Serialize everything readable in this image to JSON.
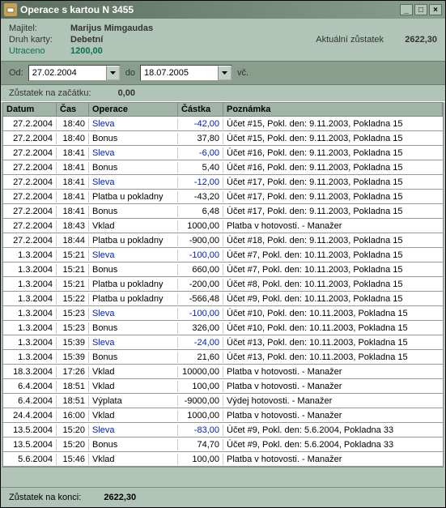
{
  "title": "Operace s kartou N 3455",
  "header": {
    "owner_label": "Majitel:",
    "owner": "Marijus Mimgaudas",
    "cardtype_label": "Druh karty:",
    "cardtype": "Debetní",
    "spent_label": "Utraceno",
    "spent": "1200,00",
    "balance_label": "Aktuální zůstatek",
    "balance": "2622,30"
  },
  "filters": {
    "from_label": "Od:",
    "from": "27.02.2004",
    "to_label": "do",
    "to": "18.07.2005",
    "incl": "vč."
  },
  "start_balance_label": "Zůstatek na začátku:",
  "start_balance": "0,00",
  "columns": {
    "datum": "Datum",
    "cas": "Čas",
    "operace": "Operace",
    "castka": "Částka",
    "pozn": "Poznámka"
  },
  "rows": [
    {
      "d": "27.2.2004",
      "t": "18:40",
      "op": "Sleva",
      "amt": "-42,00",
      "note": "Účet #15, Pokl. den: 9.11.2003, Pokladna 15",
      "link": true
    },
    {
      "d": "27.2.2004",
      "t": "18:40",
      "op": "Bonus",
      "amt": "37,80",
      "note": "Účet #15, Pokl. den: 9.11.2003, Pokladna 15"
    },
    {
      "d": "27.2.2004",
      "t": "18:41",
      "op": "Sleva",
      "amt": "-6,00",
      "note": "Účet #16, Pokl. den: 9.11.2003, Pokladna 15",
      "link": true
    },
    {
      "d": "27.2.2004",
      "t": "18:41",
      "op": "Bonus",
      "amt": "5,40",
      "note": "Účet #16, Pokl. den: 9.11.2003, Pokladna 15"
    },
    {
      "d": "27.2.2004",
      "t": "18:41",
      "op": "Sleva",
      "amt": "-12,00",
      "note": "Účet #17, Pokl. den: 9.11.2003, Pokladna 15",
      "link": true
    },
    {
      "d": "27.2.2004",
      "t": "18:41",
      "op": "Platba u pokladny",
      "amt": "-43,20",
      "note": "Účet #17, Pokl. den: 9.11.2003, Pokladna 15"
    },
    {
      "d": "27.2.2004",
      "t": "18:41",
      "op": "Bonus",
      "amt": "6,48",
      "note": "Účet #17, Pokl. den: 9.11.2003, Pokladna 15"
    },
    {
      "d": "27.2.2004",
      "t": "18:43",
      "op": "Vklad",
      "amt": "1000,00",
      "note": "Platba v hotovosti. - Manažer"
    },
    {
      "d": "27.2.2004",
      "t": "18:44",
      "op": "Platba u pokladny",
      "amt": "-900,00",
      "note": "Účet #18, Pokl. den: 9.11.2003, Pokladna 15"
    },
    {
      "d": "1.3.2004",
      "t": "15:21",
      "op": "Sleva",
      "amt": "-100,00",
      "note": "Účet #7, Pokl. den: 10.11.2003, Pokladna 15",
      "link": true
    },
    {
      "d": "1.3.2004",
      "t": "15:21",
      "op": "Bonus",
      "amt": "660,00",
      "note": "Účet #7, Pokl. den: 10.11.2003, Pokladna 15"
    },
    {
      "d": "1.3.2004",
      "t": "15:21",
      "op": "Platba u pokladny",
      "amt": "-200,00",
      "note": "Účet #8, Pokl. den: 10.11.2003, Pokladna 15"
    },
    {
      "d": "1.3.2004",
      "t": "15:22",
      "op": "Platba u pokladny",
      "amt": "-566,48",
      "note": "Účet #9, Pokl. den: 10.11.2003, Pokladna 15"
    },
    {
      "d": "1.3.2004",
      "t": "15:23",
      "op": "Sleva",
      "amt": "-100,00",
      "note": "Účet #10, Pokl. den: 10.11.2003, Pokladna 15",
      "link": true
    },
    {
      "d": "1.3.2004",
      "t": "15:23",
      "op": "Bonus",
      "amt": "326,00",
      "note": "Účet #10, Pokl. den: 10.11.2003, Pokladna 15"
    },
    {
      "d": "1.3.2004",
      "t": "15:39",
      "op": "Sleva",
      "amt": "-24,00",
      "note": "Účet #13, Pokl. den: 10.11.2003, Pokladna 15",
      "link": true
    },
    {
      "d": "1.3.2004",
      "t": "15:39",
      "op": "Bonus",
      "amt": "21,60",
      "note": "Účet #13, Pokl. den: 10.11.2003, Pokladna 15"
    },
    {
      "d": "18.3.2004",
      "t": "17:26",
      "op": "Vklad",
      "amt": "10000,00",
      "note": "Platba v hotovosti. - Manažer"
    },
    {
      "d": "6.4.2004",
      "t": "18:51",
      "op": "Vklad",
      "amt": "100,00",
      "note": "Platba v hotovosti. - Manažer"
    },
    {
      "d": "6.4.2004",
      "t": "18:51",
      "op": "Výplata",
      "amt": "-9000,00",
      "note": "Výdej hotovosti. - Manažer"
    },
    {
      "d": "24.4.2004",
      "t": "16:00",
      "op": "Vklad",
      "amt": "1000,00",
      "note": "Platba v hotovosti. - Manažer"
    },
    {
      "d": "13.5.2004",
      "t": "15:20",
      "op": "Sleva",
      "amt": "-83,00",
      "note": "Účet #9, Pokl. den: 5.6.2004, Pokladna 33",
      "link": true
    },
    {
      "d": "13.5.2004",
      "t": "15:20",
      "op": "Bonus",
      "amt": "74,70",
      "note": "Účet #9, Pokl. den: 5.6.2004, Pokladna 33"
    },
    {
      "d": "5.6.2004",
      "t": "15:46",
      "op": "Vklad",
      "amt": "100,00",
      "note": "Platba v hotovosti. - Manažer"
    }
  ],
  "end_balance_label": "Zůstatek na konci:",
  "end_balance": "2622,30"
}
